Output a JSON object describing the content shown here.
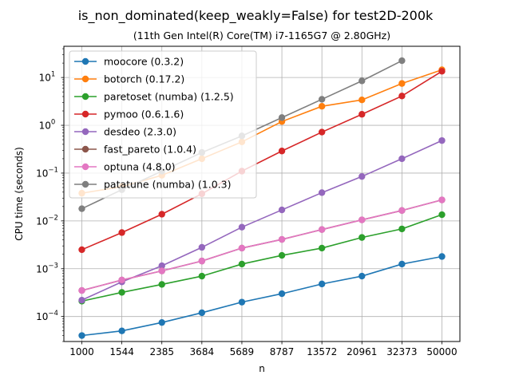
{
  "chart_data": {
    "type": "line",
    "title": "is_non_dominated(keep_weakly=False) for test2D-200k",
    "subtitle": "(11th Gen Intel(R) Core(TM) i7-1165G7 @ 2.80GHz)",
    "xlabel": "n",
    "ylabel": "CPU time (seconds)",
    "x": [
      "1000",
      "1544",
      "2385",
      "3684",
      "5689",
      "8787",
      "13572",
      "20961",
      "32373",
      "50000"
    ],
    "yscale": "log",
    "ylim": [
      3e-05,
      45
    ],
    "y_ticks": [
      {
        "value": 0.0001,
        "base": "10",
        "exp": "−4"
      },
      {
        "value": 0.001,
        "base": "10",
        "exp": "−3"
      },
      {
        "value": 0.01,
        "base": "10",
        "exp": "−2"
      },
      {
        "value": 0.1,
        "base": "10",
        "exp": "−1"
      },
      {
        "value": 1,
        "base": "10",
        "exp": "0"
      },
      {
        "value": 10,
        "base": "10",
        "exp": "1"
      }
    ],
    "grid": true,
    "legend": "upper-left",
    "series": [
      {
        "name": "moocore (0.3.2)",
        "color": "#1f77b4",
        "values": [
          4e-05,
          5e-05,
          7.5e-05,
          0.00012,
          0.0002,
          0.0003,
          0.00048,
          0.0007,
          0.00125,
          0.0018
        ]
      },
      {
        "name": "botorch (0.17.2)",
        "color": "#ff7f0e",
        "values": [
          0.038,
          0.052,
          0.09,
          0.2,
          0.45,
          1.2,
          2.5,
          3.4,
          7.5,
          14.5
        ]
      },
      {
        "name": "paretoset (numba) (1.2.5)",
        "color": "#2ca02c",
        "values": [
          0.00021,
          0.00032,
          0.00047,
          0.0007,
          0.00125,
          0.0019,
          0.0027,
          0.0045,
          0.0068,
          0.0135
        ]
      },
      {
        "name": "pymoo (0.6.1.6)",
        "color": "#d62728",
        "values": [
          0.0025,
          0.0057,
          0.0138,
          0.037,
          0.11,
          0.29,
          0.72,
          1.7,
          4.1,
          13.5
        ]
      },
      {
        "name": "desdeo (2.3.0)",
        "color": "#9467bd",
        "values": [
          0.00022,
          0.00053,
          0.00115,
          0.0028,
          0.0074,
          0.017,
          0.039,
          0.085,
          0.2,
          0.48
        ]
      },
      {
        "name": "fast_pareto (1.0.4)",
        "color": "#8c564b",
        "values": [
          0.00035,
          0.00058,
          0.0009,
          0.00145,
          0.0027,
          0.0041,
          0.0066,
          0.0105,
          0.0165,
          0.0275
        ]
      },
      {
        "name": "optuna (4.8.0)",
        "color": "#e377c2",
        "values": [
          0.00035,
          0.00058,
          0.0009,
          0.00145,
          0.0027,
          0.0041,
          0.0066,
          0.0105,
          0.0165,
          0.0275
        ]
      },
      {
        "name": "patatune (numba) (1.0.3)",
        "color": "#7f7f7f",
        "values": [
          0.018,
          0.045,
          0.11,
          0.27,
          0.6,
          1.45,
          3.5,
          8.5,
          22.5,
          null
        ]
      }
    ]
  }
}
